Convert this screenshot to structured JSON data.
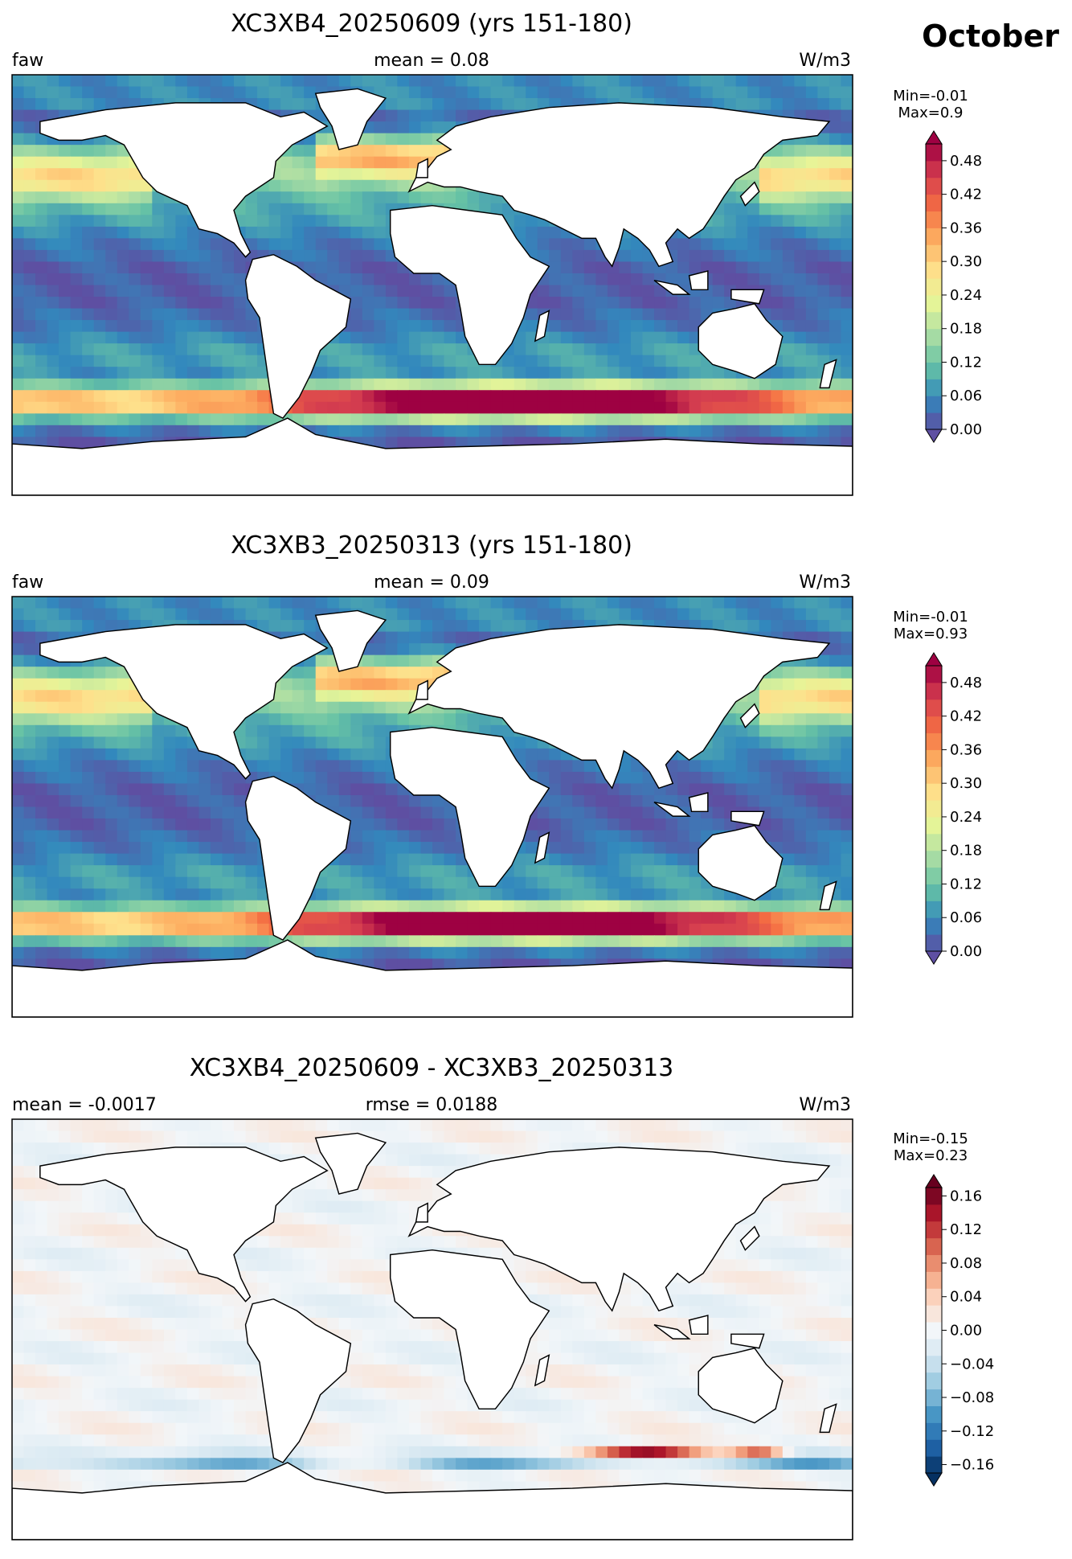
{
  "figure": {
    "month": "October"
  },
  "colors": {
    "land": "#ffffff",
    "coast": "#000000",
    "spectral": [
      "#5e4fa2",
      "#3288bd",
      "#66c2a5",
      "#abdda4",
      "#e6f598",
      "#fee08b",
      "#fdae61",
      "#f46d43",
      "#d53e4f",
      "#9e0142"
    ],
    "rdbu": [
      "#053061",
      "#2166ac",
      "#4393c3",
      "#92c5de",
      "#d1e5f0",
      "#f2f6f9",
      "#fddbc7",
      "#f4a582",
      "#d6604d",
      "#b2182b",
      "#67001f"
    ]
  },
  "chart_data": [
    {
      "type": "heatmap",
      "title": "XC3XB4_20250609 (yrs 151-180)",
      "left_label": "faw",
      "center_label": "mean = 0.08",
      "units": "W/m3",
      "stats": {
        "min": "Min=-0.01",
        "max": "Max=0.9"
      },
      "colorbar": {
        "min": 0.0,
        "max": 0.51,
        "extend": "both",
        "cmap": "Spectral_r",
        "ticks": [
          0.0,
          0.06,
          0.12,
          0.18,
          0.24,
          0.3,
          0.36,
          0.42,
          0.48
        ],
        "tick_labels": [
          "0.00",
          "0.06",
          "0.12",
          "0.18",
          "0.24",
          "0.30",
          "0.36",
          "0.42",
          "0.48"
        ]
      },
      "projection": "PlateCarree",
      "field": "zonal bands: high in Southern Ocean storm track (>0.48), ~0.2-0.3 in North Pacific/Atlantic, low (~0.02) in tropics"
    },
    {
      "type": "heatmap",
      "title": "XC3XB3_20250313 (yrs 151-180)",
      "left_label": "faw",
      "center_label": "mean = 0.09",
      "units": "W/m3",
      "stats": {
        "min": "Min=-0.01",
        "max": "Max=0.93"
      },
      "colorbar": {
        "min": 0.0,
        "max": 0.51,
        "extend": "both",
        "cmap": "Spectral_r",
        "ticks": [
          0.0,
          0.06,
          0.12,
          0.18,
          0.24,
          0.3,
          0.36,
          0.42,
          0.48
        ],
        "tick_labels": [
          "0.00",
          "0.06",
          "0.12",
          "0.18",
          "0.24",
          "0.30",
          "0.36",
          "0.42",
          "0.48"
        ]
      },
      "projection": "PlateCarree",
      "field": "similar pattern to first panel"
    },
    {
      "type": "heatmap",
      "title": "XC3XB4_20250609 - XC3XB3_20250313",
      "left_label": "mean = -0.0017",
      "center_label": "rmse = 0.0188",
      "units": "W/m3",
      "stats": {
        "min": "Min=-0.15",
        "max": "Max=0.23"
      },
      "colorbar": {
        "min": -0.17,
        "max": 0.17,
        "extend": "both",
        "cmap": "RdBu_r",
        "ticks": [
          -0.16,
          -0.12,
          -0.08,
          -0.04,
          0.0,
          0.04,
          0.08,
          0.12,
          0.16
        ],
        "tick_labels": [
          "−0.16",
          "−0.12",
          "−0.08",
          "−0.04",
          "0.00",
          "0.04",
          "0.08",
          "0.12",
          "0.16"
        ]
      },
      "projection": "PlateCarree",
      "field": "mostly near zero (±0.02), negative band along Southern Ocean ~55S with positive spots near 50S"
    }
  ]
}
